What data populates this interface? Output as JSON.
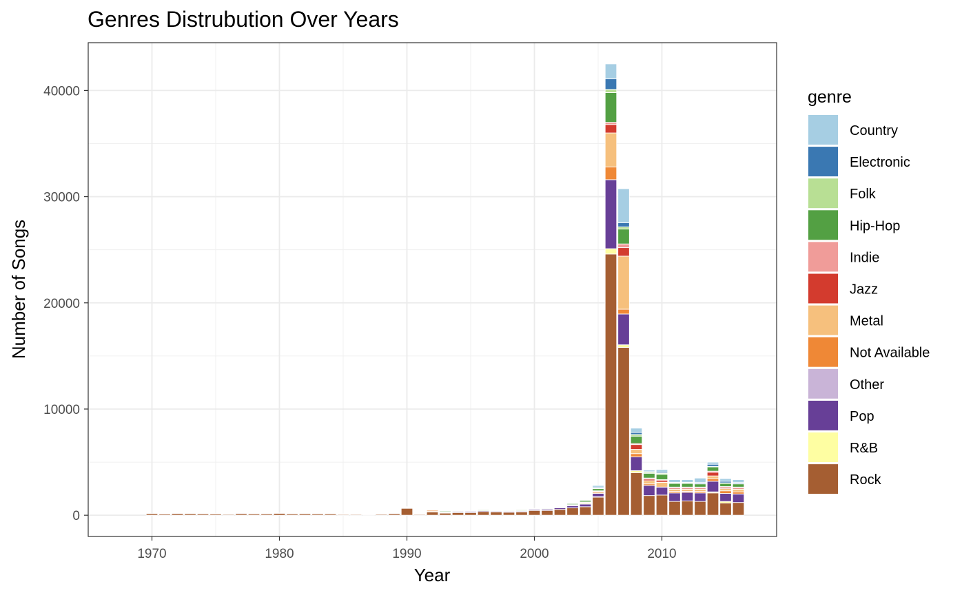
{
  "chart_data": {
    "type": "bar",
    "stacked": true,
    "title": "Genres Distrubution Over Years",
    "xlabel": "Year",
    "ylabel": "Number of Songs",
    "xlim": [
      1965,
      2019
    ],
    "ylim": [
      -2000,
      44500
    ],
    "xticks": [
      1970,
      1980,
      1990,
      2000,
      2010
    ],
    "yticks": [
      0,
      10000,
      20000,
      30000,
      40000
    ],
    "ytick_labels": [
      "0",
      "10000",
      "20000",
      "30000",
      "40000"
    ],
    "xtick_labels": [
      "1970",
      "1980",
      "1990",
      "2000",
      "2010"
    ],
    "grid": true,
    "legend_position": "right",
    "legend_title": "genre",
    "series": [
      {
        "name": "Country",
        "color": "#A6CEE3"
      },
      {
        "name": "Electronic",
        "color": "#3A78B2"
      },
      {
        "name": "Folk",
        "color": "#B8DF94"
      },
      {
        "name": "Hip-Hop",
        "color": "#53A043"
      },
      {
        "name": "Indie",
        "color": "#F09C99"
      },
      {
        "name": "Jazz",
        "color": "#D33B2E"
      },
      {
        "name": "Metal",
        "color": "#F6C07D"
      },
      {
        "name": "Not Available",
        "color": "#EF8836"
      },
      {
        "name": "Other",
        "color": "#C9B4D7"
      },
      {
        "name": "Pop",
        "color": "#673F97"
      },
      {
        "name": "R&B",
        "color": "#FEFEA2"
      },
      {
        "name": "Rock",
        "color": "#A55E32"
      }
    ],
    "stack_order": [
      "Rock",
      "R&B",
      "Pop",
      "Other",
      "Not Available",
      "Metal",
      "Jazz",
      "Indie",
      "Hip-Hop",
      "Folk",
      "Electronic",
      "Country"
    ],
    "bars": [
      {
        "year": 1970,
        "Rock": 150
      },
      {
        "year": 1971,
        "Rock": 120,
        "R&B": 30
      },
      {
        "year": 1972,
        "Rock": 160,
        "Pop": 30
      },
      {
        "year": 1973,
        "Rock": 150,
        "Not Available": 40
      },
      {
        "year": 1974,
        "Rock": 140,
        "Pop": 20
      },
      {
        "year": 1975,
        "Rock": 130,
        "Pop": 20
      },
      {
        "year": 1976,
        "Rock": 80
      },
      {
        "year": 1977,
        "Rock": 150,
        "Pop": 60
      },
      {
        "year": 1978,
        "Rock": 130,
        "Pop": 50
      },
      {
        "year": 1979,
        "Rock": 130,
        "Pop": 40
      },
      {
        "year": 1980,
        "Rock": 180,
        "Pop": 30
      },
      {
        "year": 1981,
        "Rock": 130,
        "Pop": 40
      },
      {
        "year": 1982,
        "Rock": 140,
        "Pop": 40
      },
      {
        "year": 1983,
        "Rock": 130,
        "Pop": 40
      },
      {
        "year": 1984,
        "Rock": 130,
        "Pop": 40
      },
      {
        "year": 1985,
        "Rock": 80,
        "R&B": 60
      },
      {
        "year": 1986,
        "Rock": 80,
        "R&B": 60
      },
      {
        "year": 1987,
        "Rock": 60,
        "R&B": 40,
        "Pop": 20
      },
      {
        "year": 1988,
        "Rock": 100,
        "Pop": 20,
        "Not Available": 20
      },
      {
        "year": 1989,
        "Rock": 150,
        "Hip-Hop": 30
      },
      {
        "year": 1990,
        "Rock": 650,
        "Pop": 60,
        "Metal": 30,
        "Country": 60
      },
      {
        "year": 1991,
        "Rock": 80,
        "R&B": 40
      },
      {
        "year": 1992,
        "Rock": 300,
        "Pop": 60,
        "Not Available": 100,
        "Metal": 40
      },
      {
        "year": 1993,
        "Rock": 200,
        "Pop": 60,
        "Not Available": 40,
        "Hip-Hop": 80
      },
      {
        "year": 1994,
        "Rock": 250,
        "Pop": 80,
        "Hip-Hop": 60
      },
      {
        "year": 1995,
        "Rock": 250,
        "Pop": 100,
        "Hip-Hop": 50
      },
      {
        "year": 1996,
        "Rock": 350,
        "Pop": 80,
        "Hip-Hop": 70
      },
      {
        "year": 1997,
        "Rock": 300,
        "Pop": 80,
        "Metal": 40,
        "Hip-Hop": 40
      },
      {
        "year": 1998,
        "Rock": 280,
        "Pop": 80,
        "Not Available": 40,
        "Hip-Hop": 60
      },
      {
        "year": 1999,
        "Rock": 300,
        "Pop": 80,
        "Not Available": 50,
        "Hip-Hop": 70
      },
      {
        "year": 2000,
        "Rock": 450,
        "Pop": 100,
        "Hip-Hop": 50,
        "Country": 50
      },
      {
        "year": 2001,
        "Rock": 450,
        "Pop": 120,
        "Not Available": 50,
        "Hip-Hop": 60
      },
      {
        "year": 2002,
        "Rock": 550,
        "Pop": 150,
        "Not Available": 50,
        "Metal": 50,
        "Hip-Hop": 60,
        "Electronic": 50
      },
      {
        "year": 2003,
        "Rock": 700,
        "Pop": 200,
        "Not Available": 50,
        "Metal": 50,
        "Hip-Hop": 100,
        "Country": 60
      },
      {
        "year": 2004,
        "Rock": 800,
        "Pop": 250,
        "Not Available": 50,
        "Metal": 100,
        "Jazz": 50,
        "Hip-Hop": 150,
        "Electronic": 50
      },
      {
        "year": 2005,
        "Rock": 1700,
        "R&B": 50,
        "Pop": 300,
        "Not Available": 100,
        "Metal": 100,
        "Jazz": 50,
        "Hip-Hop": 200,
        "Folk": 50,
        "Electronic": 100,
        "Country": 150
      },
      {
        "year": 2006,
        "Rock": 24600,
        "R&B": 500,
        "Pop": 6500,
        "Not Available": 1200,
        "Metal": 3200,
        "Jazz": 800,
        "Indie": 200,
        "Hip-Hop": 2800,
        "Folk": 300,
        "Electronic": 1000,
        "Country": 1400
      },
      {
        "year": 2007,
        "Rock": 15800,
        "R&B": 250,
        "Pop": 2900,
        "Not Available": 450,
        "Metal": 5000,
        "Jazz": 800,
        "Indie": 350,
        "Hip-Hop": 1400,
        "Folk": 200,
        "Electronic": 400,
        "Country": 3200
      },
      {
        "year": 2008,
        "Rock": 4000,
        "R&B": 200,
        "Pop": 1300,
        "Not Available": 300,
        "Metal": 400,
        "Jazz": 450,
        "Indie": 100,
        "Hip-Hop": 700,
        "Folk": 150,
        "Electronic": 200,
        "Country": 400
      },
      {
        "year": 2009,
        "Rock": 1850,
        "Pop": 950,
        "Not Available": 150,
        "Metal": 300,
        "Jazz": 150,
        "Indie": 100,
        "Hip-Hop": 450,
        "Folk": 100,
        "Electronic": 50,
        "Country": 150
      },
      {
        "year": 2010,
        "Rock": 1900,
        "Pop": 750,
        "Metal": 450,
        "Jazz": 150,
        "Indie": 100,
        "Hip-Hop": 500,
        "Folk": 100,
        "Electronic": 100,
        "Country": 250
      },
      {
        "year": 2011,
        "Rock": 1300,
        "Pop": 800,
        "Not Available": 150,
        "Metal": 200,
        "Jazz": 100,
        "Indie": 100,
        "Hip-Hop": 350,
        "Folk": 50,
        "Electronic": 50,
        "Country": 250
      },
      {
        "year": 2012,
        "Rock": 1350,
        "Pop": 800,
        "Not Available": 100,
        "Metal": 200,
        "Jazz": 100,
        "Indie": 100,
        "Hip-Hop": 350,
        "Folk": 50,
        "Electronic": 50,
        "Country": 250
      },
      {
        "year": 2013,
        "Rock": 1300,
        "Pop": 800,
        "Not Available": 150,
        "Metal": 200,
        "Jazz": 100,
        "Indie": 100,
        "Hip-Hop": 300,
        "Folk": 50,
        "Electronic": 100,
        "Country": 400
      },
      {
        "year": 2014,
        "Rock": 2100,
        "R&B": 100,
        "Pop": 1000,
        "Not Available": 250,
        "Metal": 250,
        "Jazz": 350,
        "Indie": 100,
        "Hip-Hop": 400,
        "Folk": 50,
        "Electronic": 200,
        "Country": 200
      },
      {
        "year": 2015,
        "Rock": 1150,
        "R&B": 150,
        "Pop": 750,
        "Not Available": 250,
        "Metal": 200,
        "Jazz": 100,
        "Indie": 100,
        "Hip-Hop": 300,
        "Folk": 50,
        "Electronic": 150,
        "Country": 250
      },
      {
        "year": 2016,
        "Rock": 1200,
        "Pop": 800,
        "Not Available": 200,
        "Metal": 250,
        "Jazz": 100,
        "Indie": 100,
        "Hip-Hop": 300,
        "Folk": 50,
        "Electronic": 100,
        "Country": 250
      }
    ]
  }
}
